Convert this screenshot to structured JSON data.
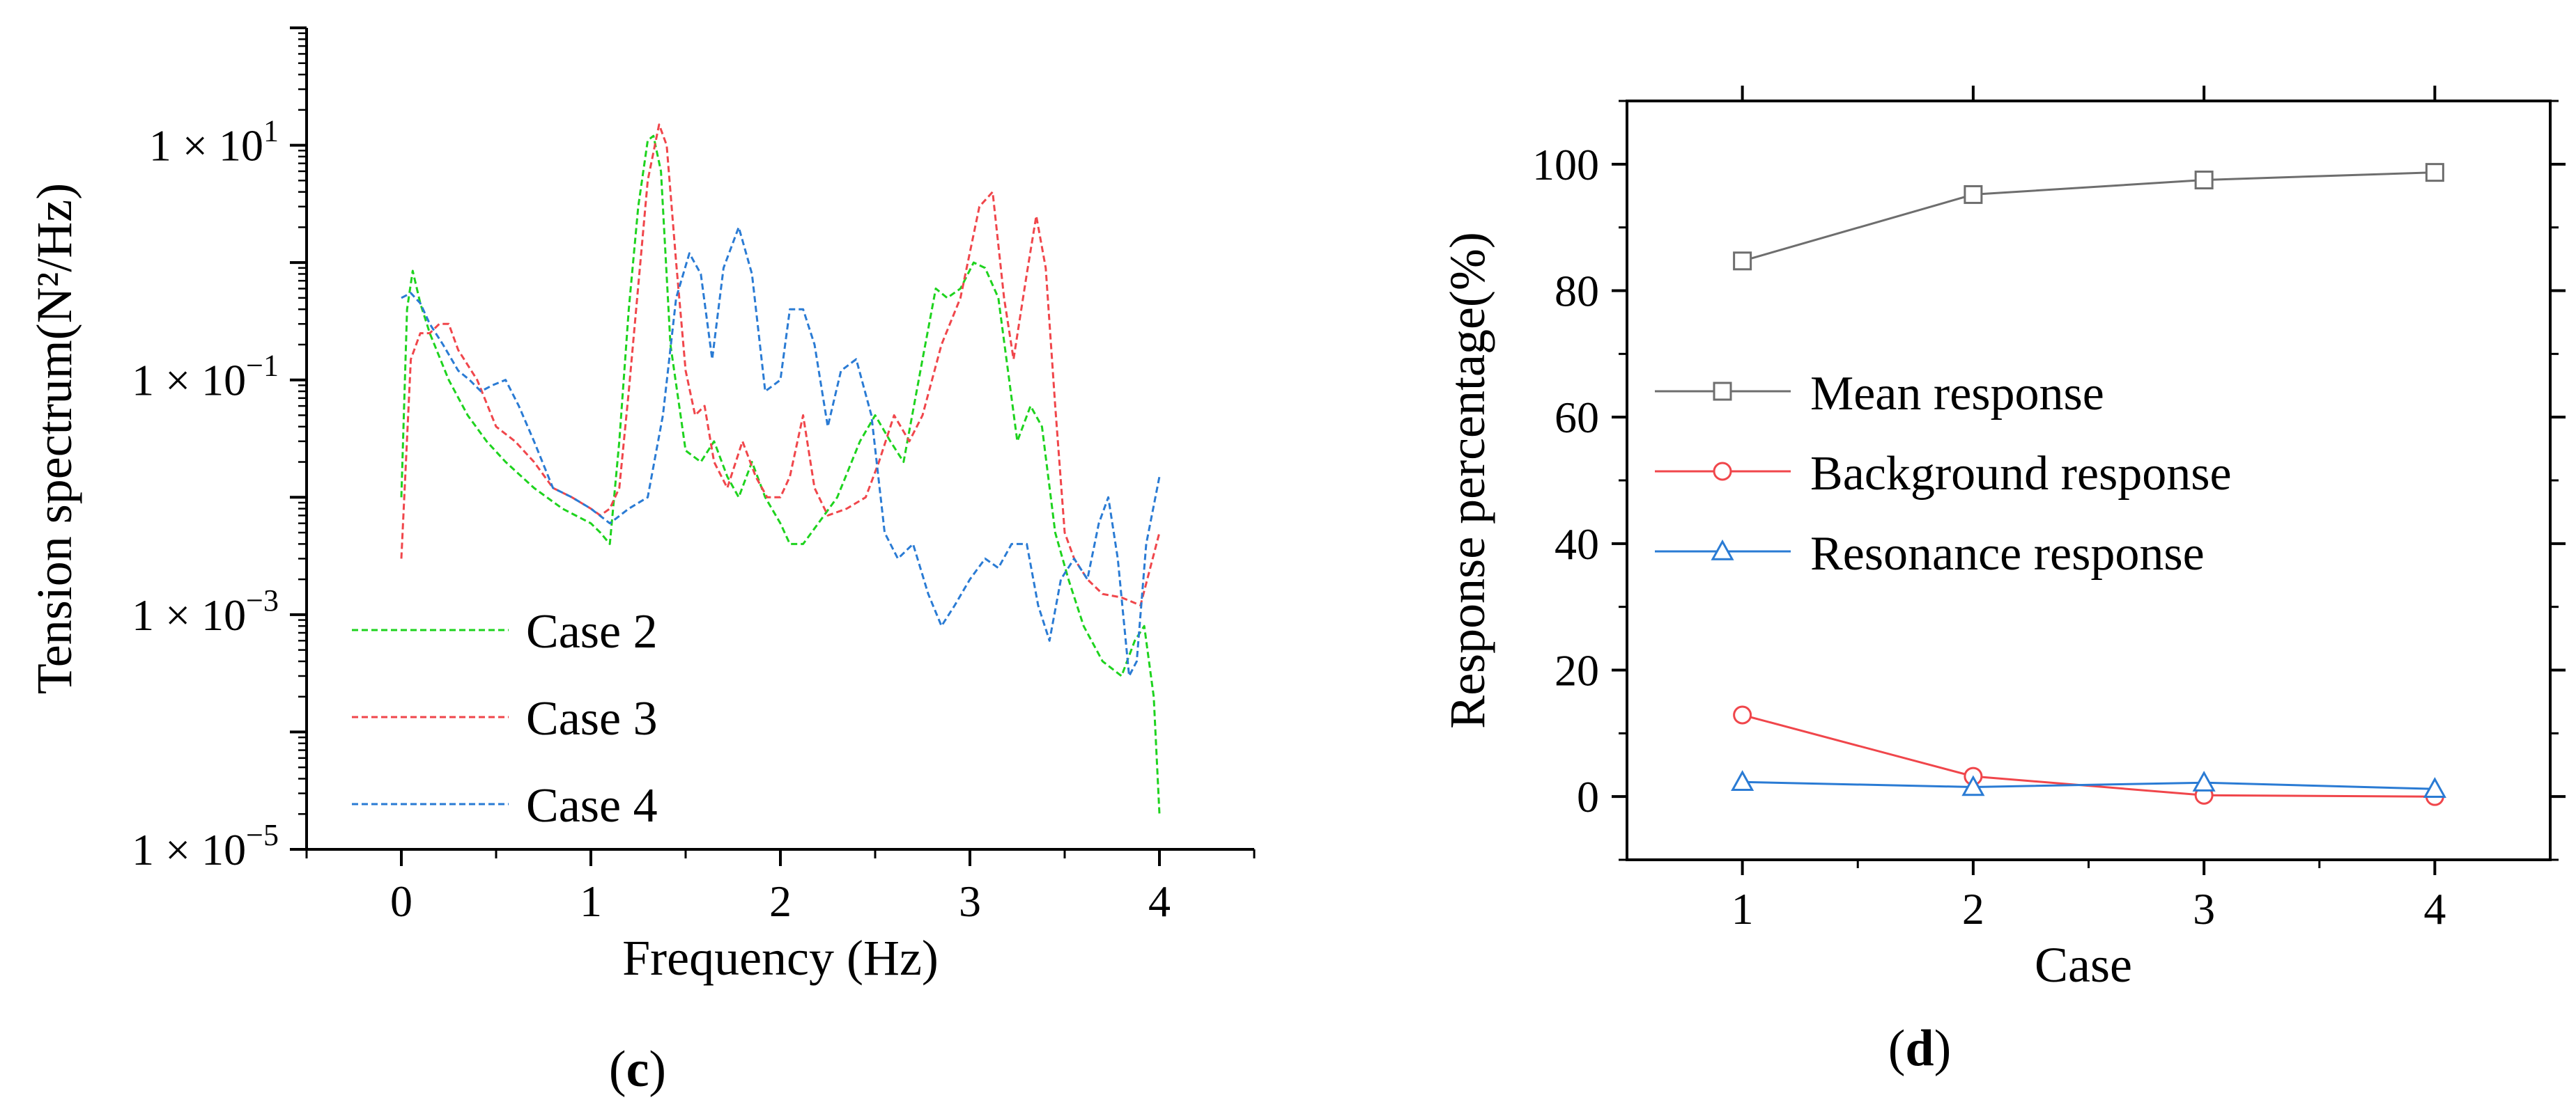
{
  "chart_data": [
    {
      "id": "c",
      "panel_label": {
        "open": "(",
        "letter": "c",
        "close": ")"
      },
      "type": "line",
      "xlabel": "Frequency (Hz)",
      "ylabel": "Tension spectrum(N²/Hz)",
      "xlim": [
        -0.5,
        4.5
      ],
      "ylim_log10": [
        -5,
        2.0
      ],
      "y_scale": "log",
      "xticks": [
        0,
        1,
        2,
        3,
        4
      ],
      "yticks": [
        {
          "exp": 1,
          "base": "1 × 10",
          "sup": "1"
        },
        {
          "exp": -1,
          "base": "1 × 10",
          "sup": "−1"
        },
        {
          "exp": -3,
          "base": "1 × 10",
          "sup": "−3"
        },
        {
          "exp": -5,
          "base": "1 × 10",
          "sup": "−5"
        }
      ],
      "legend": "bottom-left",
      "series": [
        {
          "name": "Case 2",
          "color": "#1ed31e",
          "x": [
            0,
            0.03,
            0.06,
            0.1,
            0.15,
            0.25,
            0.35,
            0.45,
            0.55,
            0.7,
            0.85,
            1.0,
            1.05,
            1.1,
            1.15,
            1.2,
            1.25,
            1.3,
            1.33,
            1.37,
            1.42,
            1.5,
            1.58,
            1.65,
            1.72,
            1.78,
            1.85,
            1.92,
            2.0,
            2.05,
            2.12,
            2.2,
            2.3,
            2.42,
            2.5,
            2.58,
            2.65,
            2.75,
            2.82,
            2.88,
            2.95,
            3.02,
            3.08,
            3.15,
            3.25,
            3.32,
            3.38,
            3.45,
            3.52,
            3.6,
            3.7,
            3.8,
            3.87,
            3.92,
            3.97,
            4.0
          ],
          "y": [
            0.01,
            0.4,
            0.85,
            0.45,
            0.25,
            0.1,
            0.05,
            0.03,
            0.02,
            0.012,
            0.008,
            0.006,
            0.005,
            0.004,
            0.03,
            0.4,
            3.0,
            11.0,
            12.0,
            6.0,
            0.2,
            0.025,
            0.02,
            0.03,
            0.015,
            0.01,
            0.02,
            0.01,
            0.006,
            0.004,
            0.004,
            0.006,
            0.01,
            0.03,
            0.05,
            0.03,
            0.02,
            0.15,
            0.6,
            0.5,
            0.6,
            1.0,
            0.9,
            0.5,
            0.03,
            0.06,
            0.04,
            0.005,
            0.002,
            0.0008,
            0.0004,
            0.0003,
            0.0006,
            0.0008,
            0.0002,
            2e-05
          ]
        },
        {
          "name": "Case 3",
          "color": "#f0464b",
          "x": [
            0,
            0.05,
            0.1,
            0.15,
            0.2,
            0.25,
            0.3,
            0.4,
            0.5,
            0.6,
            0.7,
            0.8,
            0.9,
            1.0,
            1.05,
            1.1,
            1.15,
            1.2,
            1.3,
            1.36,
            1.4,
            1.45,
            1.5,
            1.55,
            1.6,
            1.65,
            1.72,
            1.8,
            1.87,
            1.93,
            2.0,
            2.05,
            2.12,
            2.18,
            2.25,
            2.35,
            2.45,
            2.52,
            2.6,
            2.68,
            2.75,
            2.85,
            2.95,
            3.05,
            3.12,
            3.18,
            3.23,
            3.3,
            3.35,
            3.4,
            3.45,
            3.5,
            3.55,
            3.62,
            3.7,
            3.8,
            3.9,
            4.0
          ],
          "y": [
            0.003,
            0.15,
            0.25,
            0.25,
            0.3,
            0.3,
            0.18,
            0.1,
            0.04,
            0.03,
            0.02,
            0.012,
            0.01,
            0.008,
            0.007,
            0.008,
            0.012,
            0.08,
            5.0,
            15.0,
            10.0,
            1.0,
            0.12,
            0.05,
            0.06,
            0.02,
            0.012,
            0.03,
            0.015,
            0.01,
            0.01,
            0.015,
            0.05,
            0.012,
            0.007,
            0.008,
            0.01,
            0.02,
            0.05,
            0.03,
            0.05,
            0.2,
            0.5,
            3.0,
            4.0,
            0.5,
            0.15,
            0.8,
            2.5,
            0.9,
            0.06,
            0.005,
            0.003,
            0.002,
            0.0015,
            0.0014,
            0.0012,
            0.005
          ]
        },
        {
          "name": "Case 4",
          "color": "#2a7bd4",
          "x": [
            0,
            0.05,
            0.1,
            0.15,
            0.22,
            0.3,
            0.36,
            0.42,
            0.48,
            0.55,
            0.62,
            0.7,
            0.8,
            0.9,
            1.0,
            1.1,
            1.2,
            1.3,
            1.38,
            1.45,
            1.52,
            1.58,
            1.64,
            1.7,
            1.78,
            1.85,
            1.92,
            2.0,
            2.05,
            2.12,
            2.18,
            2.25,
            2.32,
            2.4,
            2.48,
            2.55,
            2.62,
            2.7,
            2.78,
            2.85,
            2.92,
            3.0,
            3.08,
            3.15,
            3.22,
            3.3,
            3.36,
            3.42,
            3.48,
            3.55,
            3.62,
            3.68,
            3.73,
            3.78,
            3.84,
            3.88,
            3.93,
            4.0
          ],
          "y": [
            0.5,
            0.55,
            0.45,
            0.3,
            0.2,
            0.12,
            0.1,
            0.08,
            0.09,
            0.1,
            0.06,
            0.03,
            0.012,
            0.01,
            0.008,
            0.006,
            0.008,
            0.01,
            0.05,
            0.5,
            1.2,
            0.8,
            0.15,
            0.9,
            2.0,
            0.8,
            0.08,
            0.1,
            0.4,
            0.4,
            0.2,
            0.04,
            0.12,
            0.15,
            0.05,
            0.005,
            0.003,
            0.004,
            0.0015,
            0.0008,
            0.0012,
            0.002,
            0.003,
            0.0025,
            0.004,
            0.004,
            0.0012,
            0.0006,
            0.002,
            0.003,
            0.002,
            0.006,
            0.01,
            0.003,
            0.0003,
            0.0004,
            0.004,
            0.015
          ]
        }
      ]
    },
    {
      "id": "d",
      "panel_label": {
        "open": "(",
        "letter": "d",
        "close": ")"
      },
      "type": "line",
      "xlabel": "Case",
      "ylabel": "Response percentage(%)",
      "xlim": [
        0.5,
        4.5
      ],
      "ylim": [
        -10,
        110
      ],
      "xticks": [
        1,
        2,
        3,
        4
      ],
      "yticks": [
        0,
        20,
        40,
        60,
        80,
        100
      ],
      "legend": "center-left",
      "x": [
        1,
        2,
        3,
        4
      ],
      "series": [
        {
          "name": "Mean  response",
          "color": "#6e6e6e",
          "marker": "square",
          "values": [
            84.7,
            95.2,
            97.5,
            98.7
          ]
        },
        {
          "name": "Background response",
          "color": "#f0464b",
          "marker": "circle",
          "values": [
            12.9,
            3.2,
            0.2,
            0.0
          ]
        },
        {
          "name": "Resonance response",
          "color": "#2a7bd4",
          "marker": "triangle",
          "values": [
            2.3,
            1.5,
            2.2,
            1.2
          ]
        }
      ]
    }
  ]
}
